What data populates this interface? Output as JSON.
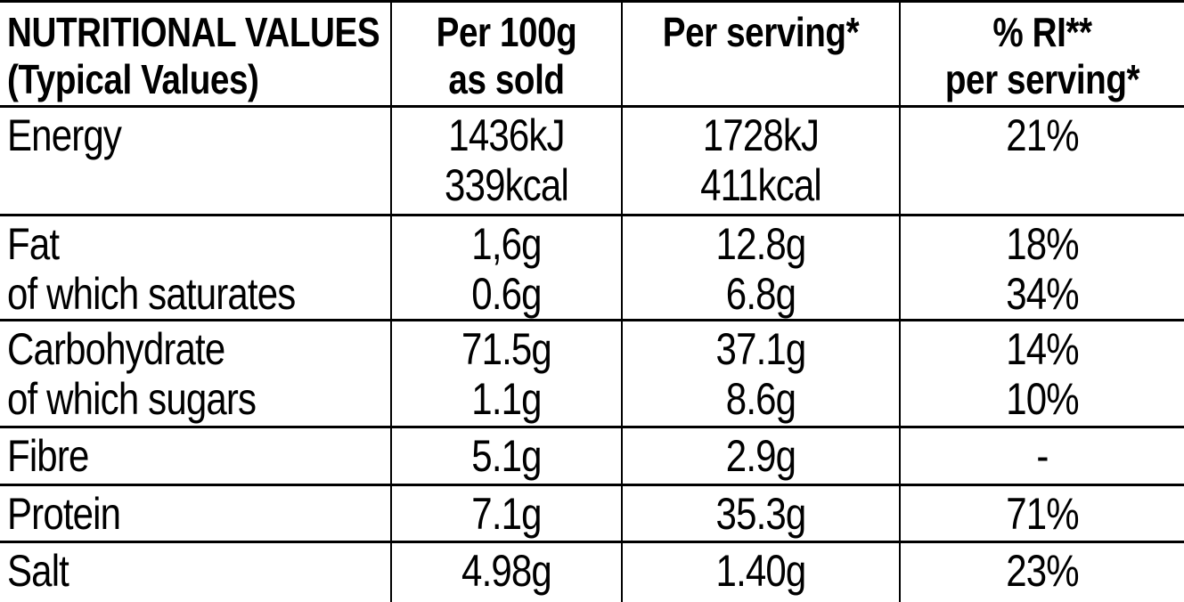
{
  "colors": {
    "background": "#ffffff",
    "text": "#000000",
    "border": "#000000"
  },
  "table": {
    "header": {
      "name": [
        "NUTRITIONAL VALUES",
        "(Typical Values)"
      ],
      "per100": [
        "Per 100g",
        "as sold"
      ],
      "serving": [
        "Per serving*"
      ],
      "ri": [
        "% RI**",
        "per serving*"
      ]
    },
    "rows": [
      {
        "label": [
          "Energy"
        ],
        "per100": [
          "1436kJ",
          "339kcal"
        ],
        "serving": [
          "1728kJ",
          "411kcal"
        ],
        "ri": [
          "21%"
        ]
      },
      {
        "label": [
          "Fat",
          "of which saturates"
        ],
        "per100": [
          "1,6g",
          "0.6g"
        ],
        "serving": [
          "12.8g",
          "6.8g"
        ],
        "ri": [
          "18%",
          "34%"
        ]
      },
      {
        "label": [
          "Carbohydrate",
          "of which sugars"
        ],
        "per100": [
          "71.5g",
          "1.1g"
        ],
        "serving": [
          "37.1g",
          "8.6g"
        ],
        "ri": [
          "14%",
          "10%"
        ]
      },
      {
        "label": [
          "Fibre"
        ],
        "per100": [
          "5.1g"
        ],
        "serving": [
          "2.9g"
        ],
        "ri": [
          "-"
        ]
      },
      {
        "label": [
          "Protein"
        ],
        "per100": [
          "7.1g"
        ],
        "serving": [
          "35.3g"
        ],
        "ri": [
          "71%"
        ]
      },
      {
        "label": [
          "Salt"
        ],
        "per100": [
          "4.98g"
        ],
        "serving": [
          "1.40g"
        ],
        "ri": [
          "23%"
        ]
      }
    ]
  }
}
